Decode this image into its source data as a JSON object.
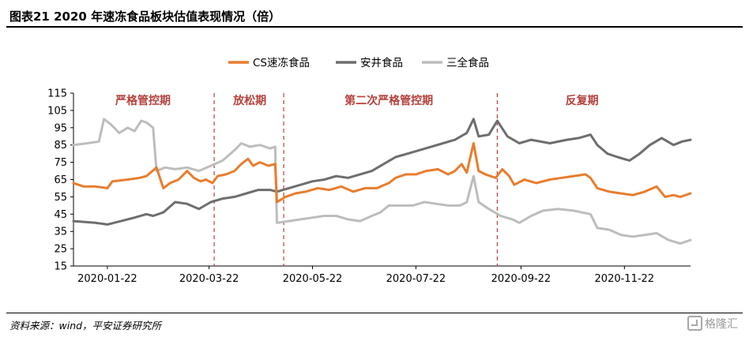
{
  "header": {
    "title": "图表21    2020 年速冻食品板块估值表现情况（倍）"
  },
  "footer": {
    "source": "资料来源：wind，平安证券研究所",
    "watermark": "格隆汇"
  },
  "colors": {
    "cs": "#e87d2e",
    "anjing": "#6e6e6e",
    "sanquan": "#bdbdbd",
    "phase": "#b5413d",
    "divider": "#b5413d"
  },
  "chart_data": {
    "type": "line",
    "title": "",
    "xlabel": "",
    "ylabel": "",
    "ylim": [
      15,
      115
    ],
    "yticks": [
      15,
      25,
      35,
      45,
      55,
      65,
      75,
      85,
      95,
      105,
      115
    ],
    "xlim": [
      "2020-01-02",
      "2020-12-31"
    ],
    "xticks": [
      "2020-01-22",
      "2020-03-22",
      "2020-05-22",
      "2020-07-22",
      "2020-09-22",
      "2020-11-22"
    ],
    "legend_position": "top",
    "grid": false,
    "phase_dividers": [
      "2020-03-25",
      "2020-05-05",
      "2020-09-08"
    ],
    "phases": [
      {
        "label": "严格管控期",
        "x": "2020-02-12"
      },
      {
        "label": "放松期",
        "x": "2020-04-15"
      },
      {
        "label": "第二次严格管控期",
        "x": "2020-07-06"
      },
      {
        "label": "反复期",
        "x": "2020-10-28"
      }
    ],
    "series": [
      {
        "name": "CS速冻食品",
        "color": "#e87d2e",
        "points": [
          [
            "2020-01-02",
            63
          ],
          [
            "2020-01-08",
            61
          ],
          [
            "2020-01-15",
            61
          ],
          [
            "2020-01-22",
            60
          ],
          [
            "2020-01-25",
            64
          ],
          [
            "2020-02-03",
            65
          ],
          [
            "2020-02-10",
            66
          ],
          [
            "2020-02-14",
            67
          ],
          [
            "2020-02-20",
            72
          ],
          [
            "2020-02-24",
            60
          ],
          [
            "2020-02-28",
            63
          ],
          [
            "2020-03-04",
            65
          ],
          [
            "2020-03-09",
            70
          ],
          [
            "2020-03-13",
            66
          ],
          [
            "2020-03-17",
            64
          ],
          [
            "2020-03-20",
            65
          ],
          [
            "2020-03-24",
            63
          ],
          [
            "2020-03-27",
            67
          ],
          [
            "2020-04-01",
            68
          ],
          [
            "2020-04-06",
            70
          ],
          [
            "2020-04-10",
            74
          ],
          [
            "2020-04-14",
            77
          ],
          [
            "2020-04-17",
            73
          ],
          [
            "2020-04-21",
            75
          ],
          [
            "2020-04-26",
            73
          ],
          [
            "2020-04-30",
            74
          ],
          [
            "2020-05-01",
            52
          ],
          [
            "2020-05-06",
            55
          ],
          [
            "2020-05-12",
            57
          ],
          [
            "2020-05-18",
            58
          ],
          [
            "2020-05-25",
            60
          ],
          [
            "2020-06-01",
            59
          ],
          [
            "2020-06-08",
            61
          ],
          [
            "2020-06-15",
            58
          ],
          [
            "2020-06-22",
            60
          ],
          [
            "2020-06-29",
            60
          ],
          [
            "2020-07-06",
            63
          ],
          [
            "2020-07-10",
            66
          ],
          [
            "2020-07-16",
            68
          ],
          [
            "2020-07-22",
            68
          ],
          [
            "2020-07-28",
            70
          ],
          [
            "2020-08-04",
            71
          ],
          [
            "2020-08-10",
            68
          ],
          [
            "2020-08-14",
            70
          ],
          [
            "2020-08-18",
            74
          ],
          [
            "2020-08-21",
            69
          ],
          [
            "2020-08-25",
            86
          ],
          [
            "2020-08-28",
            70
          ],
          [
            "2020-09-01",
            68
          ],
          [
            "2020-09-07",
            66
          ],
          [
            "2020-09-11",
            71
          ],
          [
            "2020-09-15",
            67
          ],
          [
            "2020-09-18",
            62
          ],
          [
            "2020-09-24",
            65
          ],
          [
            "2020-10-01",
            63
          ],
          [
            "2020-10-09",
            65
          ],
          [
            "2020-10-16",
            66
          ],
          [
            "2020-10-23",
            67
          ],
          [
            "2020-10-30",
            68
          ],
          [
            "2020-11-02",
            66
          ],
          [
            "2020-11-06",
            60
          ],
          [
            "2020-11-13",
            58
          ],
          [
            "2020-11-20",
            57
          ],
          [
            "2020-11-27",
            56
          ],
          [
            "2020-12-04",
            58
          ],
          [
            "2020-12-11",
            61
          ],
          [
            "2020-12-16",
            55
          ],
          [
            "2020-12-21",
            56
          ],
          [
            "2020-12-25",
            55
          ],
          [
            "2020-12-31",
            57
          ]
        ]
      },
      {
        "name": "安井食品",
        "color": "#6e6e6e",
        "points": [
          [
            "2020-01-02",
            41
          ],
          [
            "2020-01-15",
            40
          ],
          [
            "2020-01-22",
            39
          ],
          [
            "2020-01-30",
            41
          ],
          [
            "2020-02-07",
            43
          ],
          [
            "2020-02-14",
            45
          ],
          [
            "2020-02-18",
            44
          ],
          [
            "2020-02-24",
            46
          ],
          [
            "2020-03-02",
            52
          ],
          [
            "2020-03-09",
            51
          ],
          [
            "2020-03-16",
            48
          ],
          [
            "2020-03-23",
            52
          ],
          [
            "2020-03-30",
            54
          ],
          [
            "2020-04-06",
            55
          ],
          [
            "2020-04-13",
            57
          ],
          [
            "2020-04-20",
            59
          ],
          [
            "2020-04-27",
            59
          ],
          [
            "2020-05-01",
            58
          ],
          [
            "2020-05-08",
            60
          ],
          [
            "2020-05-15",
            62
          ],
          [
            "2020-05-22",
            64
          ],
          [
            "2020-05-29",
            65
          ],
          [
            "2020-06-05",
            67
          ],
          [
            "2020-06-12",
            66
          ],
          [
            "2020-06-19",
            68
          ],
          [
            "2020-06-26",
            70
          ],
          [
            "2020-07-03",
            74
          ],
          [
            "2020-07-10",
            78
          ],
          [
            "2020-07-17",
            80
          ],
          [
            "2020-07-24",
            82
          ],
          [
            "2020-07-31",
            84
          ],
          [
            "2020-08-07",
            86
          ],
          [
            "2020-08-14",
            88
          ],
          [
            "2020-08-21",
            92
          ],
          [
            "2020-08-25",
            100
          ],
          [
            "2020-08-28",
            90
          ],
          [
            "2020-09-03",
            91
          ],
          [
            "2020-09-08",
            99
          ],
          [
            "2020-09-14",
            90
          ],
          [
            "2020-09-21",
            86
          ],
          [
            "2020-09-28",
            88
          ],
          [
            "2020-10-09",
            86
          ],
          [
            "2020-10-19",
            88
          ],
          [
            "2020-10-26",
            89
          ],
          [
            "2020-11-02",
            91
          ],
          [
            "2020-11-06",
            85
          ],
          [
            "2020-11-12",
            80
          ],
          [
            "2020-11-18",
            78
          ],
          [
            "2020-11-25",
            76
          ],
          [
            "2020-12-01",
            80
          ],
          [
            "2020-12-07",
            85
          ],
          [
            "2020-12-14",
            89
          ],
          [
            "2020-12-21",
            85
          ],
          [
            "2020-12-26",
            87
          ],
          [
            "2020-12-31",
            88
          ]
        ]
      },
      {
        "name": "三全食品",
        "color": "#bdbdbd",
        "points": [
          [
            "2020-01-02",
            85
          ],
          [
            "2020-01-10",
            86
          ],
          [
            "2020-01-17",
            87
          ],
          [
            "2020-01-20",
            100
          ],
          [
            "2020-01-24",
            97
          ],
          [
            "2020-01-29",
            92
          ],
          [
            "2020-02-03",
            95
          ],
          [
            "2020-02-07",
            93
          ],
          [
            "2020-02-11",
            99
          ],
          [
            "2020-02-14",
            98
          ],
          [
            "2020-02-18",
            95
          ],
          [
            "2020-02-20",
            70
          ],
          [
            "2020-02-25",
            72
          ],
          [
            "2020-03-02",
            71
          ],
          [
            "2020-03-09",
            72
          ],
          [
            "2020-03-16",
            70
          ],
          [
            "2020-03-23",
            73
          ],
          [
            "2020-03-30",
            76
          ],
          [
            "2020-04-06",
            82
          ],
          [
            "2020-04-10",
            86
          ],
          [
            "2020-04-15",
            84
          ],
          [
            "2020-04-21",
            85
          ],
          [
            "2020-04-27",
            83
          ],
          [
            "2020-04-30",
            84
          ],
          [
            "2020-05-01",
            40
          ],
          [
            "2020-05-08",
            41
          ],
          [
            "2020-05-15",
            42
          ],
          [
            "2020-05-22",
            43
          ],
          [
            "2020-05-29",
            44
          ],
          [
            "2020-06-05",
            44
          ],
          [
            "2020-06-12",
            42
          ],
          [
            "2020-06-19",
            41
          ],
          [
            "2020-06-26",
            44
          ],
          [
            "2020-07-01",
            46
          ],
          [
            "2020-07-06",
            50
          ],
          [
            "2020-07-13",
            50
          ],
          [
            "2020-07-20",
            50
          ],
          [
            "2020-07-27",
            52
          ],
          [
            "2020-08-03",
            51
          ],
          [
            "2020-08-10",
            50
          ],
          [
            "2020-08-17",
            50
          ],
          [
            "2020-08-21",
            52
          ],
          [
            "2020-08-25",
            67
          ],
          [
            "2020-08-28",
            52
          ],
          [
            "2020-09-03",
            48
          ],
          [
            "2020-09-10",
            44
          ],
          [
            "2020-09-17",
            42
          ],
          [
            "2020-09-21",
            40
          ],
          [
            "2020-09-28",
            44
          ],
          [
            "2020-10-05",
            47
          ],
          [
            "2020-10-14",
            48
          ],
          [
            "2020-10-23",
            47
          ],
          [
            "2020-11-02",
            45
          ],
          [
            "2020-11-06",
            37
          ],
          [
            "2020-11-13",
            36
          ],
          [
            "2020-11-20",
            33
          ],
          [
            "2020-11-27",
            32
          ],
          [
            "2020-12-04",
            33
          ],
          [
            "2020-12-11",
            34
          ],
          [
            "2020-12-18",
            30
          ],
          [
            "2020-12-25",
            28
          ],
          [
            "2020-12-31",
            30
          ]
        ]
      }
    ]
  }
}
